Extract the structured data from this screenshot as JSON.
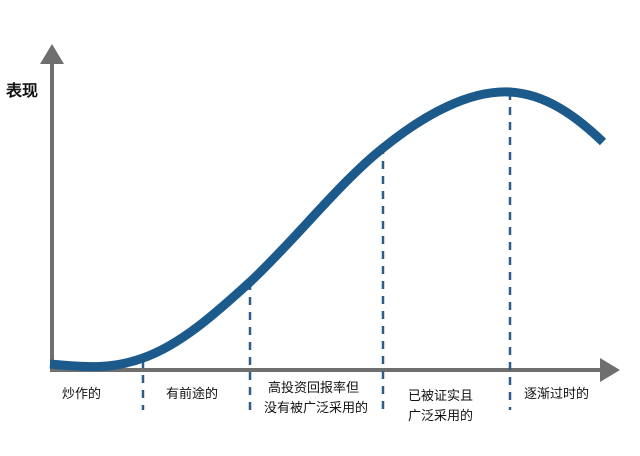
{
  "diagram": {
    "y_axis_label": "表现",
    "phases": [
      {
        "lines": [
          "炒作的"
        ]
      },
      {
        "lines": [
          "有前途的"
        ]
      },
      {
        "lines": [
          "高投资回报率但",
          "没有被广泛采用的"
        ]
      },
      {
        "lines": [
          "已被证实且",
          "广泛采用的"
        ]
      },
      {
        "lines": [
          "逐渐过时的"
        ]
      }
    ],
    "colors": {
      "curve": "#1c5a8c",
      "axis": "#6f6f6f",
      "divider": "#2f5d8a"
    }
  }
}
